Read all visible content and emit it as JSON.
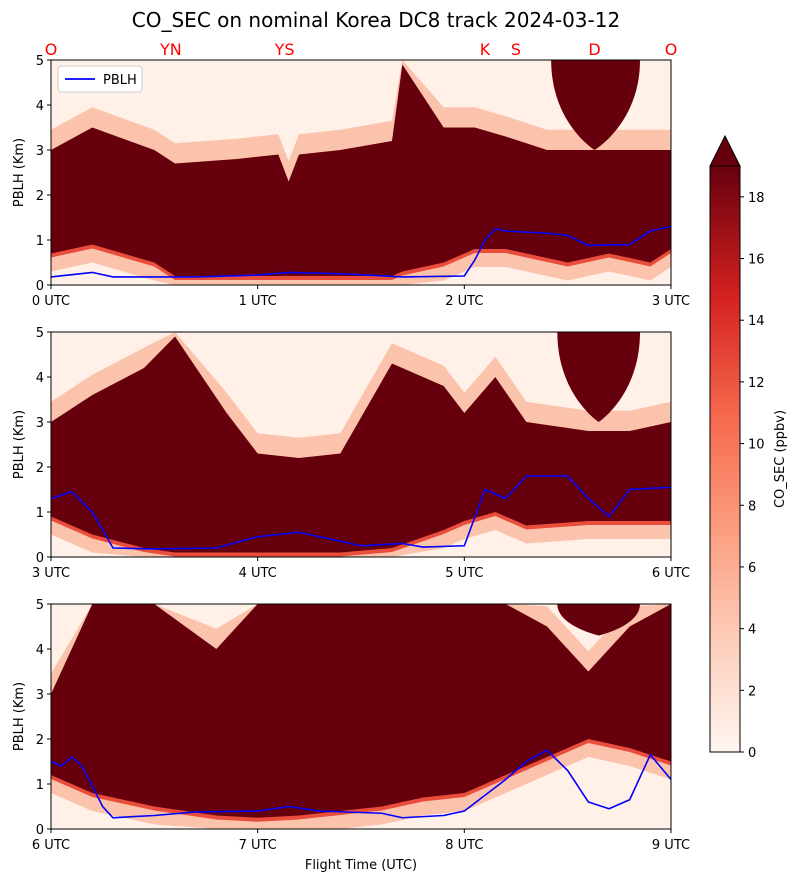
{
  "title": "CO_SEC on nominal Korea DC8 track 2024-03-12",
  "xlabel": "Flight Time (UTC)",
  "ylabel": "PBLH (Km)",
  "legend_label": "PBLH",
  "colorbar_label": "CO_SEC (ppbv)",
  "colors": {
    "pblh_line": "#0000ff",
    "site_labels": "#ff0000"
  },
  "site_labels": [
    {
      "label": "O",
      "time_utc": 0.0
    },
    {
      "label": "YN",
      "time_utc": 0.58
    },
    {
      "label": "YS",
      "time_utc": 1.13
    },
    {
      "label": "K",
      "time_utc": 2.1
    },
    {
      "label": "S",
      "time_utc": 2.25
    },
    {
      "label": "D",
      "time_utc": 2.63
    },
    {
      "label": "O",
      "time_utc": 3.0
    }
  ],
  "colorbar": {
    "min": 0,
    "max": 19,
    "ticks": [
      "0",
      "2",
      "4",
      "6",
      "8",
      "10",
      "12",
      "14",
      "16",
      "18"
    ],
    "extend": "max"
  },
  "chart_data": [
    {
      "type": "heatmap",
      "panel": 1,
      "x_range": [
        0,
        3
      ],
      "ylim": [
        0,
        5
      ],
      "xticks": [
        "0 UTC",
        "1 UTC",
        "2 UTC",
        "3 UTC"
      ],
      "yticks": [
        "0",
        "1",
        "2",
        "3",
        "4",
        "5"
      ],
      "legend": "top-left",
      "pblh_series": {
        "name": "PBLH",
        "x": [
          0,
          0.2,
          0.3,
          0.5,
          0.7,
          1.0,
          1.15,
          1.4,
          1.7,
          2.0,
          2.05,
          2.1,
          2.15,
          2.2,
          2.4,
          2.5,
          2.6,
          2.8,
          2.9,
          3.0
        ],
        "y": [
          0.18,
          0.28,
          0.18,
          0.18,
          0.18,
          0.22,
          0.28,
          0.25,
          0.18,
          0.2,
          0.55,
          1.0,
          1.25,
          1.2,
          1.15,
          1.1,
          0.88,
          0.9,
          1.2,
          1.3
        ]
      },
      "co_profile": {
        "x": [
          0,
          0.2,
          0.5,
          0.6,
          0.9,
          1.1,
          1.15,
          1.2,
          1.4,
          1.65,
          1.7,
          1.9,
          2.05,
          2.2,
          2.4,
          2.5,
          2.7,
          2.9,
          3.0
        ],
        "polluted_bottom_km": [
          0.7,
          0.9,
          0.5,
          0.2,
          0.2,
          0.2,
          0.2,
          0.2,
          0.2,
          0.2,
          0.3,
          0.5,
          0.8,
          0.8,
          0.6,
          0.5,
          0.7,
          0.5,
          0.8
        ],
        "polluted_top_km": [
          3.0,
          3.5,
          3.0,
          2.7,
          2.8,
          2.9,
          2.3,
          2.9,
          3.0,
          3.2,
          4.9,
          3.5,
          3.5,
          3.3,
          3.0,
          3.0,
          3.0,
          3.0,
          3.0
        ],
        "upper_plume": {
          "x": [
            2.42,
            2.63,
            2.85
          ],
          "bottom_km": [
            5.0,
            3.0,
            5.0
          ]
        }
      }
    },
    {
      "type": "heatmap",
      "panel": 2,
      "x_range": [
        3,
        6
      ],
      "ylim": [
        0,
        5
      ],
      "xticks": [
        "3 UTC",
        "4 UTC",
        "5 UTC",
        "6 UTC"
      ],
      "yticks": [
        "0",
        "1",
        "2",
        "3",
        "4",
        "5"
      ],
      "pblh_series": {
        "name": "PBLH",
        "x": [
          3,
          3.1,
          3.2,
          3.3,
          3.5,
          3.8,
          4.0,
          4.2,
          4.5,
          4.7,
          4.8,
          5.0,
          5.1,
          5.2,
          5.3,
          5.5,
          5.6,
          5.7,
          5.8,
          6.0
        ],
        "y": [
          1.3,
          1.45,
          1.0,
          0.2,
          0.18,
          0.2,
          0.45,
          0.55,
          0.25,
          0.3,
          0.22,
          0.25,
          1.5,
          1.3,
          1.8,
          1.8,
          1.3,
          0.9,
          1.5,
          1.55
        ]
      },
      "co_profile": {
        "x": [
          3,
          3.2,
          3.45,
          3.6,
          3.85,
          4.0,
          4.2,
          4.4,
          4.65,
          4.9,
          5.0,
          5.15,
          5.3,
          5.6,
          5.8,
          6.0
        ],
        "polluted_bottom_km": [
          0.9,
          0.5,
          0.2,
          0.1,
          0.1,
          0.1,
          0.1,
          0.1,
          0.2,
          0.6,
          0.8,
          1.0,
          0.7,
          0.8,
          0.8,
          0.8
        ],
        "polluted_top_km": [
          3.0,
          3.6,
          4.2,
          4.9,
          3.2,
          2.3,
          2.2,
          2.3,
          4.3,
          3.8,
          3.2,
          4.0,
          3.0,
          2.8,
          2.8,
          3.0
        ],
        "upper_plume": {
          "x": [
            5.45,
            5.65,
            5.85
          ],
          "bottom_km": [
            5.0,
            3.0,
            5.0
          ]
        }
      }
    },
    {
      "type": "heatmap",
      "panel": 3,
      "x_range": [
        6,
        9
      ],
      "ylim": [
        0,
        5
      ],
      "xticks": [
        "6 UTC",
        "7 UTC",
        "8 UTC",
        "9 UTC"
      ],
      "yticks": [
        "0",
        "1",
        "2",
        "3",
        "4",
        "5"
      ],
      "pblh_series": {
        "name": "PBLH",
        "x": [
          6,
          6.05,
          6.1,
          6.15,
          6.25,
          6.3,
          6.5,
          6.7,
          7.0,
          7.15,
          7.3,
          7.6,
          7.7,
          7.9,
          8.0,
          8.2,
          8.3,
          8.4,
          8.5,
          8.6,
          8.7,
          8.8,
          8.9,
          9.0
        ],
        "y": [
          1.5,
          1.4,
          1.6,
          1.4,
          0.5,
          0.25,
          0.3,
          0.38,
          0.4,
          0.5,
          0.4,
          0.35,
          0.25,
          0.3,
          0.4,
          1.1,
          1.5,
          1.75,
          1.3,
          0.6,
          0.45,
          0.65,
          1.65,
          1.1
        ]
      },
      "co_profile": {
        "x": [
          6,
          6.2,
          6.5,
          6.8,
          7.0,
          7.2,
          7.4,
          7.6,
          7.8,
          8.0,
          8.2,
          8.4,
          8.6,
          8.8,
          9.0
        ],
        "polluted_bottom_km": [
          1.2,
          0.8,
          0.5,
          0.3,
          0.25,
          0.3,
          0.4,
          0.5,
          0.7,
          0.8,
          1.2,
          1.6,
          2.0,
          1.8,
          1.5
        ],
        "polluted_top_km": [
          3.0,
          5.0,
          5.0,
          4.0,
          5.0,
          5.0,
          5.0,
          5.0,
          5.0,
          5.0,
          5.0,
          4.5,
          3.5,
          4.5,
          5.0
        ],
        "upper_plume": {
          "x": [
            8.45,
            8.65,
            8.85
          ],
          "bottom_km": [
            5.0,
            4.3,
            5.0
          ]
        }
      }
    }
  ]
}
